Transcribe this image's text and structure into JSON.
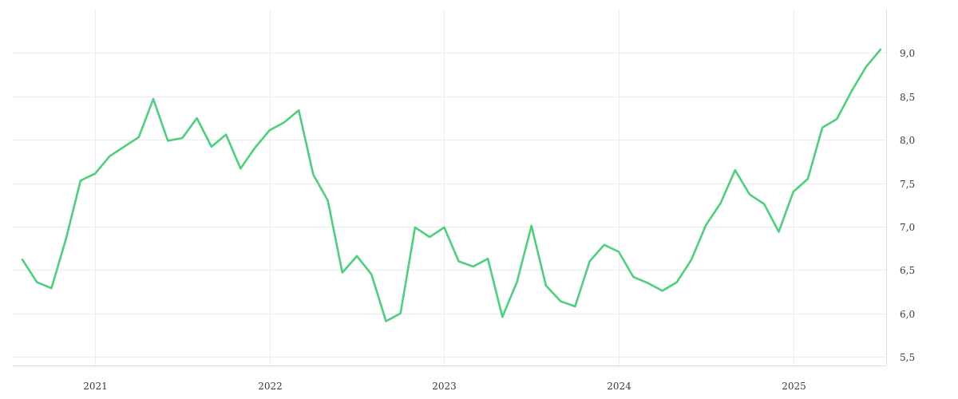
{
  "chart_data": {
    "type": "line",
    "title": "",
    "xlabel": "",
    "ylabel": "",
    "y_axis_position": "right",
    "grid": true,
    "xlim": [
      "2020-08",
      "2025-07"
    ],
    "ylim": [
      5.4,
      9.5
    ],
    "x_ticks": [
      {
        "value": "2021-01",
        "label": "2021"
      },
      {
        "value": "2022-01",
        "label": "2022"
      },
      {
        "value": "2023-01",
        "label": "2023"
      },
      {
        "value": "2024-01",
        "label": "2024"
      },
      {
        "value": "2025-01",
        "label": "2025"
      }
    ],
    "y_ticks": [
      {
        "value": 5.5,
        "label": "5,5"
      },
      {
        "value": 6.0,
        "label": "6,0"
      },
      {
        "value": 6.5,
        "label": "6,5"
      },
      {
        "value": 7.0,
        "label": "7,0"
      },
      {
        "value": 7.5,
        "label": "7,5"
      },
      {
        "value": 8.0,
        "label": "8,0"
      },
      {
        "value": 8.5,
        "label": "8,5"
      },
      {
        "value": 9.0,
        "label": "9,0"
      }
    ],
    "series": [
      {
        "color": "#4cd07d",
        "x": [
          "2020-08",
          "2020-09",
          "2020-10",
          "2020-11",
          "2020-12",
          "2021-01",
          "2021-02",
          "2021-03",
          "2021-04",
          "2021-05",
          "2021-06",
          "2021-07",
          "2021-08",
          "2021-09",
          "2021-10",
          "2021-11",
          "2021-12",
          "2022-01",
          "2022-02",
          "2022-03",
          "2022-04",
          "2022-05",
          "2022-06",
          "2022-07",
          "2022-08",
          "2022-09",
          "2022-10",
          "2022-11",
          "2022-12",
          "2023-01",
          "2023-02",
          "2023-03",
          "2023-04",
          "2023-05",
          "2023-06",
          "2023-07",
          "2023-08",
          "2023-09",
          "2023-10",
          "2023-11",
          "2023-12",
          "2024-01",
          "2024-02",
          "2024-03",
          "2024-04",
          "2024-05",
          "2024-06",
          "2024-07",
          "2024-08",
          "2024-09",
          "2024-10",
          "2024-11",
          "2024-12",
          "2025-01",
          "2025-02",
          "2025-03",
          "2025-04",
          "2025-05",
          "2025-06",
          "2025-07"
        ],
        "values": [
          6.62,
          6.36,
          6.29,
          6.86,
          7.53,
          7.61,
          7.81,
          7.92,
          8.03,
          8.47,
          7.99,
          8.02,
          8.25,
          7.92,
          8.06,
          7.67,
          7.91,
          8.11,
          8.2,
          8.34,
          7.6,
          7.3,
          6.47,
          6.66,
          6.45,
          5.91,
          6.0,
          6.99,
          6.88,
          6.99,
          6.6,
          6.54,
          6.63,
          5.96,
          6.36,
          7.01,
          6.32,
          6.14,
          6.08,
          6.6,
          6.79,
          6.71,
          6.42,
          6.35,
          6.26,
          6.36,
          6.62,
          7.02,
          7.27,
          7.65,
          7.37,
          7.26,
          6.94,
          7.4,
          7.55,
          8.14,
          8.24,
          8.56,
          8.84,
          9.04
        ]
      }
    ]
  }
}
